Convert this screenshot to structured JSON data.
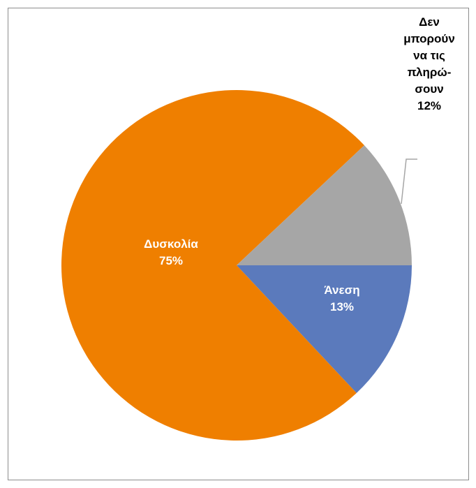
{
  "chart_data": {
    "type": "pie",
    "categories": [
      "Άνεση",
      "Δυσκολία",
      "Δεν μπορούν να τις πληρώ-σουν"
    ],
    "values": [
      13,
      75,
      12
    ],
    "value_labels": [
      "13%",
      "75%",
      "12%"
    ],
    "colors": [
      "#5b7abc",
      "#ef7f00",
      "#a6a6a6"
    ]
  }
}
